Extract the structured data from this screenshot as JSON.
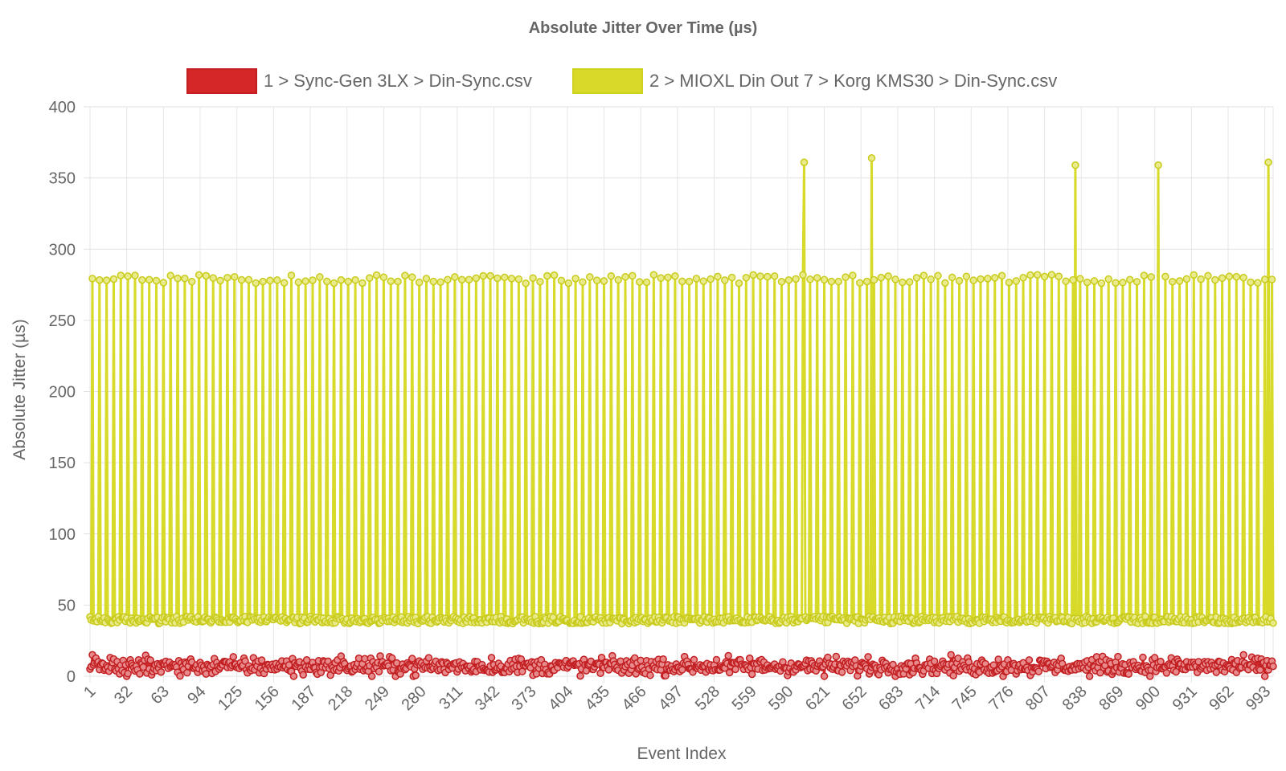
{
  "chart_data": {
    "type": "line",
    "title": "Absolute Jitter Over Time (µs)",
    "xlabel": "Event Index",
    "ylabel": "Absolute Jitter (µs)",
    "xlim": [
      1,
      1000
    ],
    "ylim": [
      0,
      400
    ],
    "y_ticks": [
      "0",
      "50",
      "100",
      "150",
      "200",
      "250",
      "300",
      "350",
      "400"
    ],
    "x_ticks": [
      "1",
      "32",
      "63",
      "94",
      "125",
      "156",
      "187",
      "218",
      "249",
      "280",
      "311",
      "342",
      "373",
      "404",
      "435",
      "466",
      "497",
      "528",
      "559",
      "590",
      "621",
      "652",
      "683",
      "714",
      "745",
      "776",
      "807",
      "838",
      "869",
      "900",
      "931",
      "962",
      "993"
    ],
    "grid": true,
    "legend_position": "top",
    "series": [
      {
        "name": "1 > Sync-Gen 3LX > Din-Sync.csv",
        "color": "#d62728",
        "points": 1000,
        "pattern": "noise",
        "typical_range": [
          0,
          15
        ],
        "mean": 7
      },
      {
        "name": "2 > MIOXL Din Out 7 > Korg KMS30 > Din-Sync.csv",
        "color": "#d8da2a",
        "points": 1000,
        "pattern": "periodic-spikes",
        "baseline_range": [
          37,
          46
        ],
        "baseline_mean": 40,
        "spike_period": 6,
        "spike_range": [
          276,
          286
        ],
        "spike_mean": 279,
        "outliers": [
          {
            "x": 604,
            "y": 361
          },
          {
            "x": 661,
            "y": 364
          },
          {
            "x": 833,
            "y": 359
          },
          {
            "x": 903,
            "y": 359
          },
          {
            "x": 996,
            "y": 361
          }
        ]
      }
    ]
  }
}
